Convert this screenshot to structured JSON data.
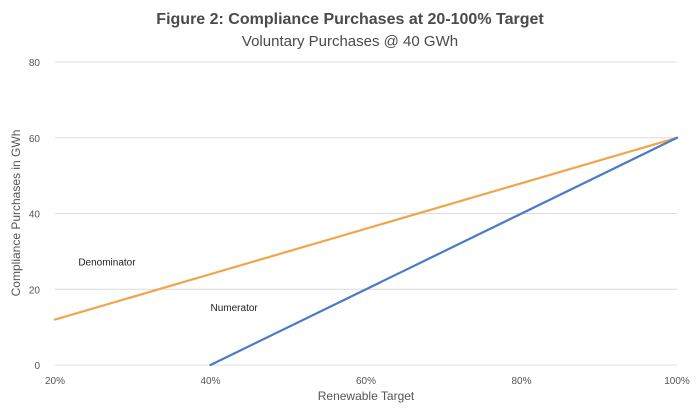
{
  "chart_data": {
    "type": "line",
    "title": "Figure 2: Compliance Purchases at 20-100% Target",
    "subtitle": "Voluntary Purchases @ 40 GWh",
    "xlabel": "Renewable Target",
    "ylabel": "Compliance Purchases in GWh",
    "x_ticks": [
      "20%",
      "40%",
      "60%",
      "80%",
      "100%"
    ],
    "y_ticks": [
      "0",
      "20",
      "40",
      "60",
      "80"
    ],
    "xlim": [
      20,
      100
    ],
    "ylim": [
      0,
      80
    ],
    "grid": true,
    "series": [
      {
        "name": "Denominator",
        "color": "#EFA64A",
        "x": [
          20,
          100
        ],
        "y": [
          12,
          60
        ]
      },
      {
        "name": "Numerator",
        "color": "#4A7BC8",
        "x": [
          40,
          100
        ],
        "y": [
          0,
          60
        ]
      }
    ],
    "annotations": [
      {
        "text": "Denominator",
        "x": 23,
        "y": 27
      },
      {
        "text": "Numerator",
        "x": 40,
        "y": 15
      }
    ]
  }
}
